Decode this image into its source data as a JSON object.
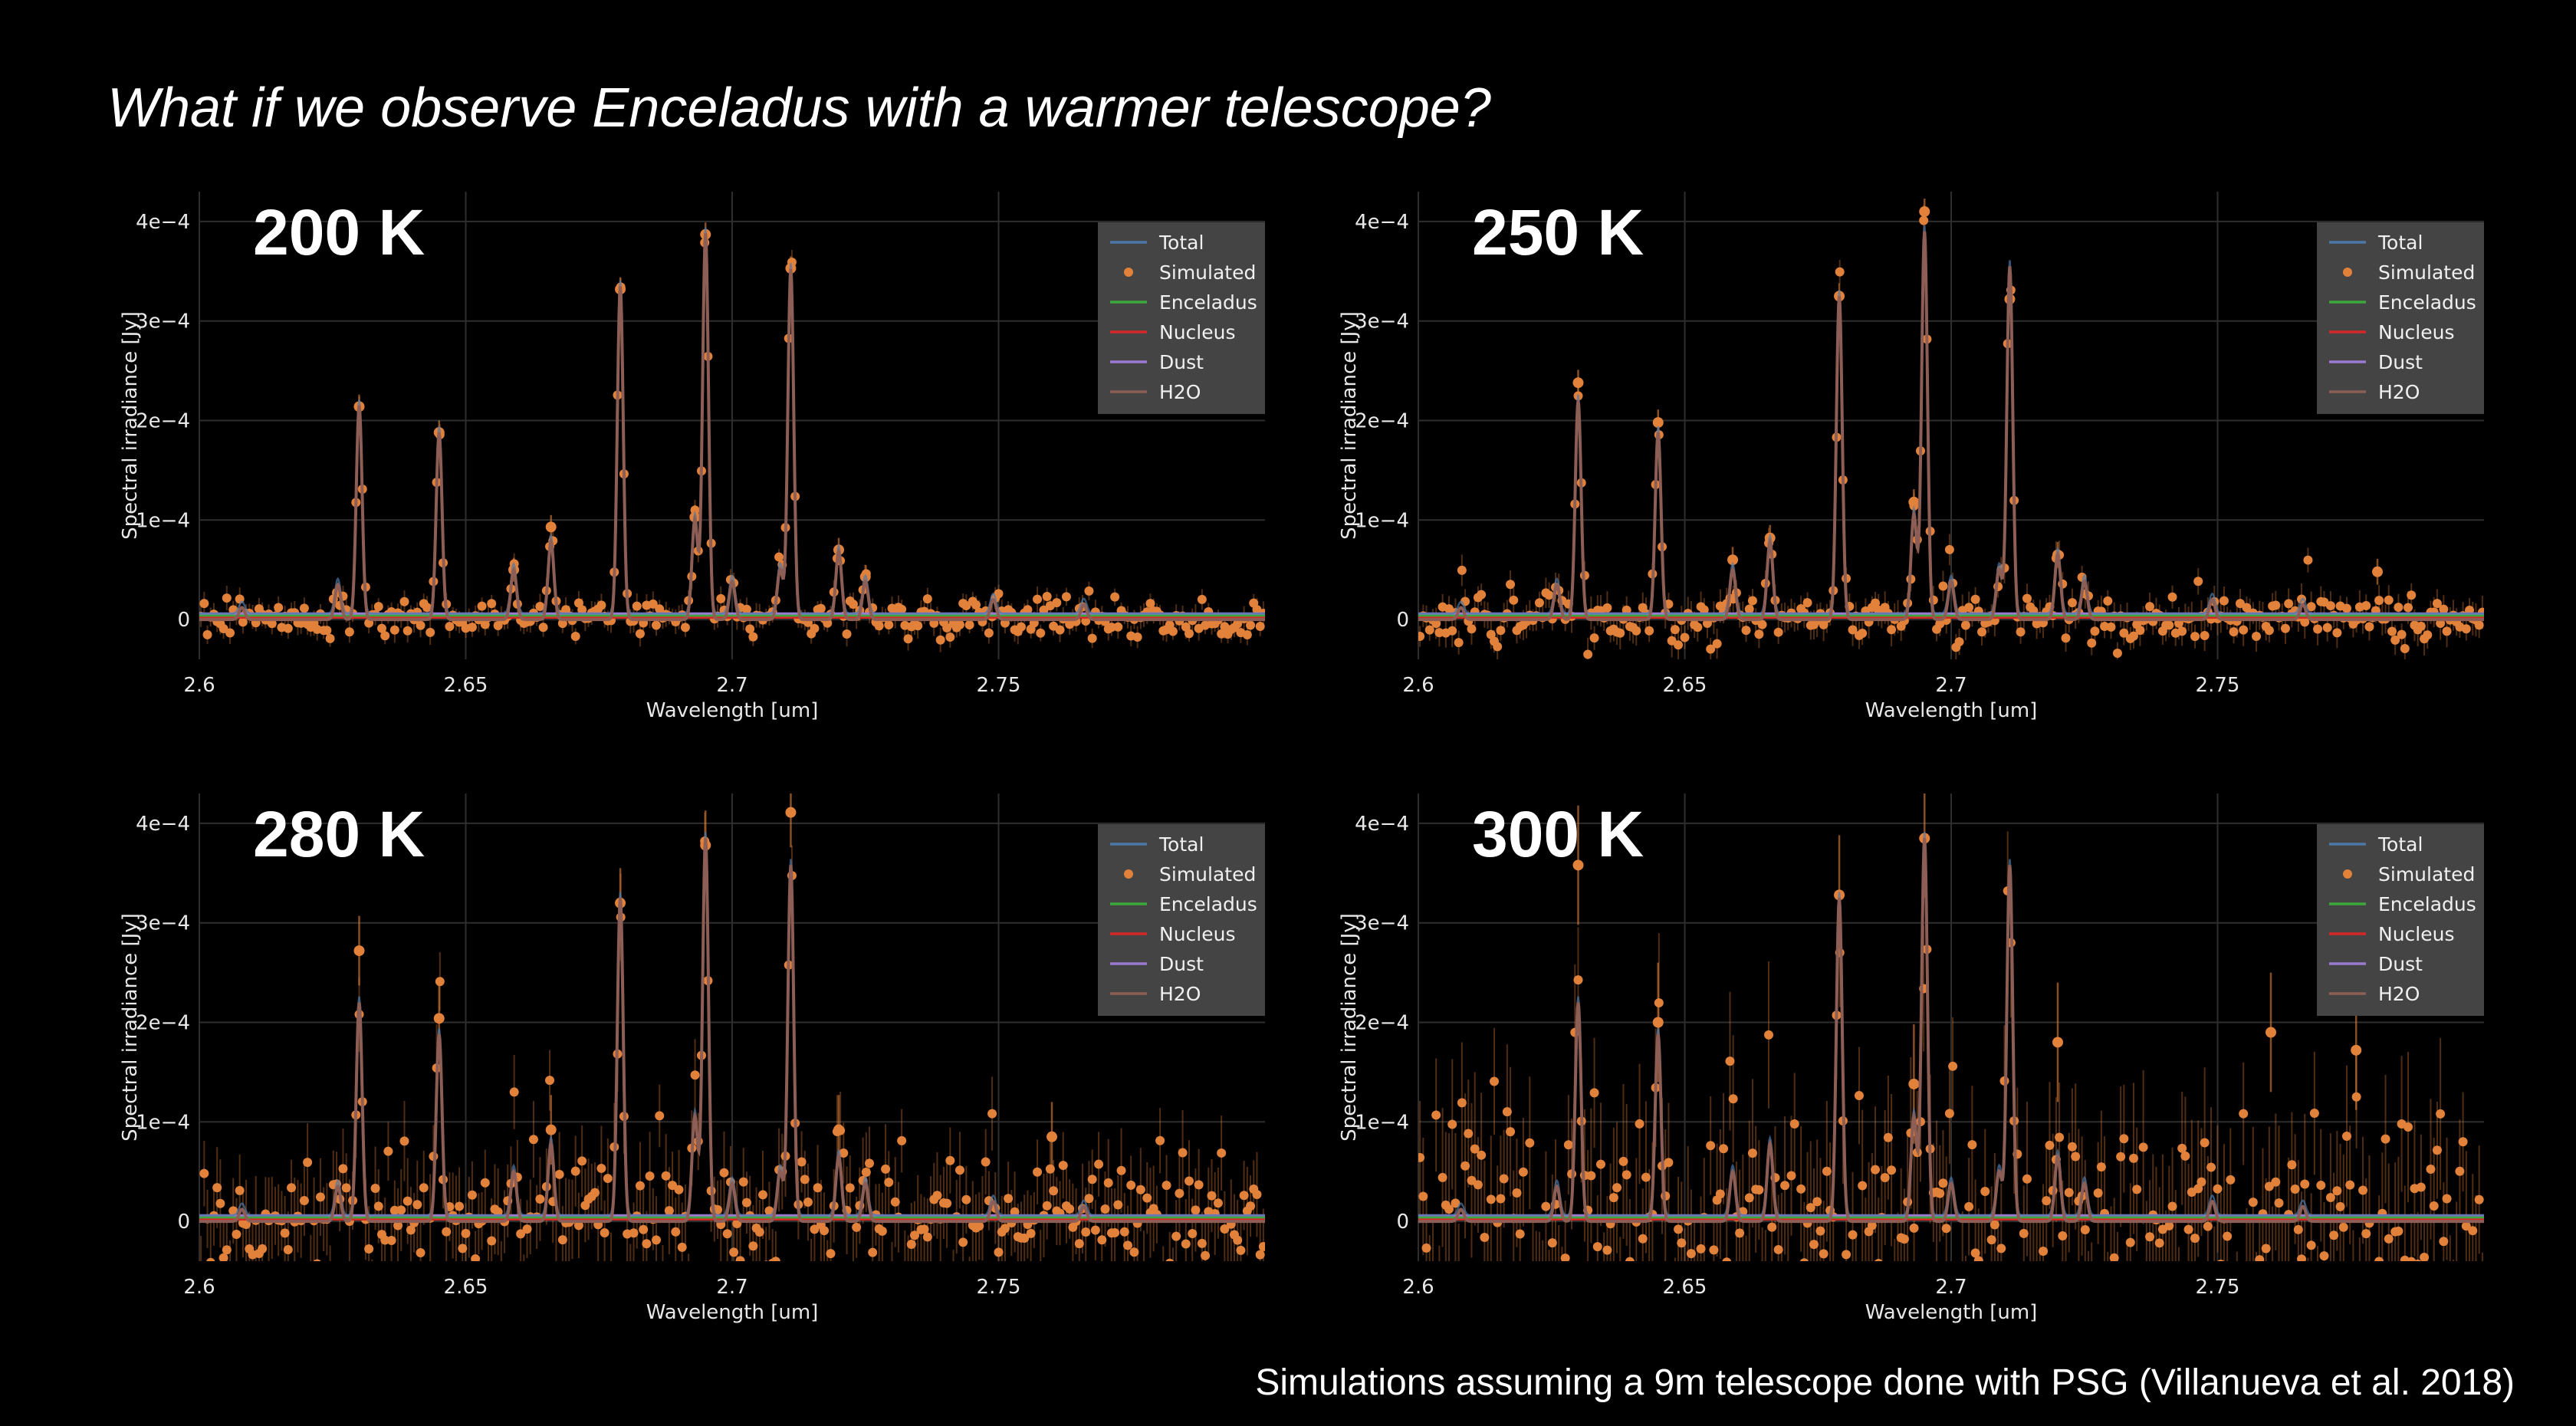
{
  "title": "What if we observe Enceladus with a warmer telescope?",
  "footnote": "Simulations assuming a 9m telescope done with PSG (Villanueva et al. 2018)",
  "colors": {
    "background": "#000000",
    "total": "#4c78a8",
    "simulated": "#e1813a",
    "enceladus": "#3ca73c",
    "nucleus": "#d62728",
    "dust": "#9a7ad0",
    "h2o": "#8c5e55",
    "legend_bg": "#444444",
    "grid": "#2e2e2e"
  },
  "chart_data": [
    {
      "type": "line",
      "label": "200 K",
      "temperature_K": 200,
      "xlabel": "Wavelength [um]",
      "ylabel": "Spectral irradiance [Jy]",
      "xlim": [
        2.6,
        2.8
      ],
      "ylim": [
        -4e-05,
        0.00043
      ],
      "xticks": [
        2.6,
        2.65,
        2.7,
        2.75
      ],
      "xtick_labels": [
        "2.6",
        "2.65",
        "2.7",
        "2.75"
      ],
      "yticks": [
        0,
        0.0001,
        0.0002,
        0.0003,
        0.0004
      ],
      "ytick_labels": [
        "0",
        "1e−4",
        "2e−4",
        "3e−4",
        "4e−4"
      ],
      "grid": true,
      "legend_position": "top-right",
      "legend": [
        "Total",
        "Simulated",
        "Enceladus",
        "Nucleus",
        "Dust",
        "H2O"
      ],
      "noise": 1e-05,
      "peaks": [
        {
          "x": 2.608,
          "y": 1.2e-05
        },
        {
          "x": 2.626,
          "y": 3.5e-05
        },
        {
          "x": 2.63,
          "y": 0.000215
        },
        {
          "x": 2.645,
          "y": 0.000188
        },
        {
          "x": 2.659,
          "y": 5e-05
        },
        {
          "x": 2.666,
          "y": 7.8e-05
        },
        {
          "x": 2.679,
          "y": 0.000335
        },
        {
          "x": 2.693,
          "y": 0.0001
        },
        {
          "x": 2.695,
          "y": 0.000388
        },
        {
          "x": 2.7,
          "y": 3.8e-05
        },
        {
          "x": 2.709,
          "y": 5e-05
        },
        {
          "x": 2.711,
          "y": 0.000352
        },
        {
          "x": 2.72,
          "y": 6.8e-05
        },
        {
          "x": 2.725,
          "y": 3.8e-05
        },
        {
          "x": 2.749,
          "y": 2e-05
        },
        {
          "x": 2.766,
          "y": 1.5e-05
        }
      ],
      "simulated_highlights": [
        {
          "x": 2.63,
          "y": 0.000214
        },
        {
          "x": 2.645,
          "y": 0.000188
        },
        {
          "x": 2.659,
          "y": 5e-05
        },
        {
          "x": 2.666,
          "y": 9.3e-05
        },
        {
          "x": 2.679,
          "y": 0.000332
        },
        {
          "x": 2.693,
          "y": 0.000103
        },
        {
          "x": 2.695,
          "y": 0.000387
        },
        {
          "x": 2.711,
          "y": 0.000353
        },
        {
          "x": 2.72,
          "y": 7e-05
        },
        {
          "x": 2.725,
          "y": 4.3e-05
        }
      ]
    },
    {
      "type": "line",
      "label": "250 K",
      "temperature_K": 250,
      "xlabel": "Wavelength [um]",
      "ylabel": "Spectral irradiance [Jy]",
      "xlim": [
        2.6,
        2.8
      ],
      "ylim": [
        -4e-05,
        0.00043
      ],
      "xticks": [
        2.6,
        2.65,
        2.7,
        2.75
      ],
      "xtick_labels": [
        "2.6",
        "2.65",
        "2.7",
        "2.75"
      ],
      "yticks": [
        0,
        0.0001,
        0.0002,
        0.0003,
        0.0004
      ],
      "ytick_labels": [
        "0",
        "1e−4",
        "2e−4",
        "3e−4",
        "4e−4"
      ],
      "grid": true,
      "legend_position": "top-right",
      "legend": [
        "Total",
        "Simulated",
        "Enceladus",
        "Nucleus",
        "Dust",
        "H2O"
      ],
      "noise": 1.3e-05,
      "peaks": [
        {
          "x": 2.608,
          "y": 1.2e-05
        },
        {
          "x": 2.626,
          "y": 3.5e-05
        },
        {
          "x": 2.63,
          "y": 0.00022
        },
        {
          "x": 2.645,
          "y": 0.000188
        },
        {
          "x": 2.659,
          "y": 5e-05
        },
        {
          "x": 2.666,
          "y": 7.8e-05
        },
        {
          "x": 2.679,
          "y": 0.000325
        },
        {
          "x": 2.693,
          "y": 0.000105
        },
        {
          "x": 2.695,
          "y": 0.00039
        },
        {
          "x": 2.7,
          "y": 3.8e-05
        },
        {
          "x": 2.709,
          "y": 5e-05
        },
        {
          "x": 2.711,
          "y": 0.000355
        },
        {
          "x": 2.72,
          "y": 6.5e-05
        },
        {
          "x": 2.725,
          "y": 3.8e-05
        },
        {
          "x": 2.749,
          "y": 2e-05
        },
        {
          "x": 2.766,
          "y": 1.5e-05
        }
      ],
      "simulated_highlights": [
        {
          "x": 2.63,
          "y": 0.000238
        },
        {
          "x": 2.645,
          "y": 0.000198
        },
        {
          "x": 2.659,
          "y": 6e-05
        },
        {
          "x": 2.666,
          "y": 8.2e-05
        },
        {
          "x": 2.679,
          "y": 0.000325
        },
        {
          "x": 2.693,
          "y": 0.000118
        },
        {
          "x": 2.695,
          "y": 0.00041
        },
        {
          "x": 2.711,
          "y": 0.000322
        },
        {
          "x": 2.72,
          "y": 6.5e-05
        },
        {
          "x": 2.78,
          "y": 4.8e-05
        }
      ]
    },
    {
      "type": "line",
      "label": "280 K",
      "temperature_K": 280,
      "xlabel": "Wavelength [um]",
      "ylabel": "Spectral irradiance [Jy]",
      "xlim": [
        2.6,
        2.8
      ],
      "ylim": [
        -4e-05,
        0.00043
      ],
      "xticks": [
        2.6,
        2.65,
        2.7,
        2.75
      ],
      "xtick_labels": [
        "2.6",
        "2.65",
        "2.7",
        "2.75"
      ],
      "yticks": [
        0,
        0.0001,
        0.0002,
        0.0003,
        0.0004
      ],
      "ytick_labels": [
        "0",
        "1e−4",
        "2e−4",
        "3e−4",
        "4e−4"
      ],
      "grid": true,
      "legend_position": "top-right",
      "legend": [
        "Total",
        "Simulated",
        "Enceladus",
        "Nucleus",
        "Dust",
        "H2O"
      ],
      "noise": 3.5e-05,
      "peaks": [
        {
          "x": 2.608,
          "y": 1.2e-05
        },
        {
          "x": 2.626,
          "y": 3.5e-05
        },
        {
          "x": 2.63,
          "y": 0.00022
        },
        {
          "x": 2.645,
          "y": 0.000188
        },
        {
          "x": 2.659,
          "y": 5e-05
        },
        {
          "x": 2.666,
          "y": 7.8e-05
        },
        {
          "x": 2.679,
          "y": 0.000325
        },
        {
          "x": 2.693,
          "y": 0.000105
        },
        {
          "x": 2.695,
          "y": 0.000385
        },
        {
          "x": 2.7,
          "y": 3.8e-05
        },
        {
          "x": 2.709,
          "y": 5e-05
        },
        {
          "x": 2.711,
          "y": 0.000358
        },
        {
          "x": 2.72,
          "y": 6.5e-05
        },
        {
          "x": 2.725,
          "y": 3.8e-05
        },
        {
          "x": 2.749,
          "y": 2e-05
        },
        {
          "x": 2.766,
          "y": 1.5e-05
        }
      ],
      "simulated_highlights": [
        {
          "x": 2.63,
          "y": 0.000272
        },
        {
          "x": 2.645,
          "y": 0.000204
        },
        {
          "x": 2.666,
          "y": 9.2e-05
        },
        {
          "x": 2.679,
          "y": 0.00032
        },
        {
          "x": 2.695,
          "y": 0.000378
        },
        {
          "x": 2.711,
          "y": 0.000411
        },
        {
          "x": 2.72,
          "y": 9.2e-05
        },
        {
          "x": 2.76,
          "y": 8.5e-05
        }
      ]
    },
    {
      "type": "line",
      "label": "300 K",
      "temperature_K": 300,
      "xlabel": "Wavelength [um]",
      "ylabel": "Spectral irradiance [Jy]",
      "xlim": [
        2.6,
        2.8
      ],
      "ylim": [
        -4e-05,
        0.00043
      ],
      "xticks": [
        2.6,
        2.65,
        2.7,
        2.75
      ],
      "xtick_labels": [
        "2.6",
        "2.65",
        "2.7",
        "2.75"
      ],
      "yticks": [
        0,
        0.0001,
        0.0002,
        0.0003,
        0.0004
      ],
      "ytick_labels": [
        "0",
        "1e−4",
        "2e−4",
        "3e−4",
        "4e−4"
      ],
      "grid": true,
      "legend_position": "top-right",
      "legend": [
        "Total",
        "Simulated",
        "Enceladus",
        "Nucleus",
        "Dust",
        "H2O"
      ],
      "noise": 6e-05,
      "peaks": [
        {
          "x": 2.608,
          "y": 1.2e-05
        },
        {
          "x": 2.626,
          "y": 3.5e-05
        },
        {
          "x": 2.63,
          "y": 0.00022
        },
        {
          "x": 2.645,
          "y": 0.000188
        },
        {
          "x": 2.659,
          "y": 5e-05
        },
        {
          "x": 2.666,
          "y": 7.8e-05
        },
        {
          "x": 2.679,
          "y": 0.000325
        },
        {
          "x": 2.693,
          "y": 0.000105
        },
        {
          "x": 2.695,
          "y": 0.000385
        },
        {
          "x": 2.7,
          "y": 3.8e-05
        },
        {
          "x": 2.709,
          "y": 5e-05
        },
        {
          "x": 2.711,
          "y": 0.000358
        },
        {
          "x": 2.72,
          "y": 6.5e-05
        },
        {
          "x": 2.725,
          "y": 3.8e-05
        },
        {
          "x": 2.749,
          "y": 2e-05
        },
        {
          "x": 2.766,
          "y": 1.5e-05
        }
      ],
      "simulated_highlights": [
        {
          "x": 2.63,
          "y": 0.000358
        },
        {
          "x": 2.645,
          "y": 0.0002
        },
        {
          "x": 2.679,
          "y": 0.000328
        },
        {
          "x": 2.693,
          "y": 0.000138
        },
        {
          "x": 2.695,
          "y": 0.000385
        },
        {
          "x": 2.72,
          "y": 0.00018
        },
        {
          "x": 2.76,
          "y": 0.00019
        },
        {
          "x": 2.776,
          "y": 0.000172
        }
      ]
    }
  ]
}
